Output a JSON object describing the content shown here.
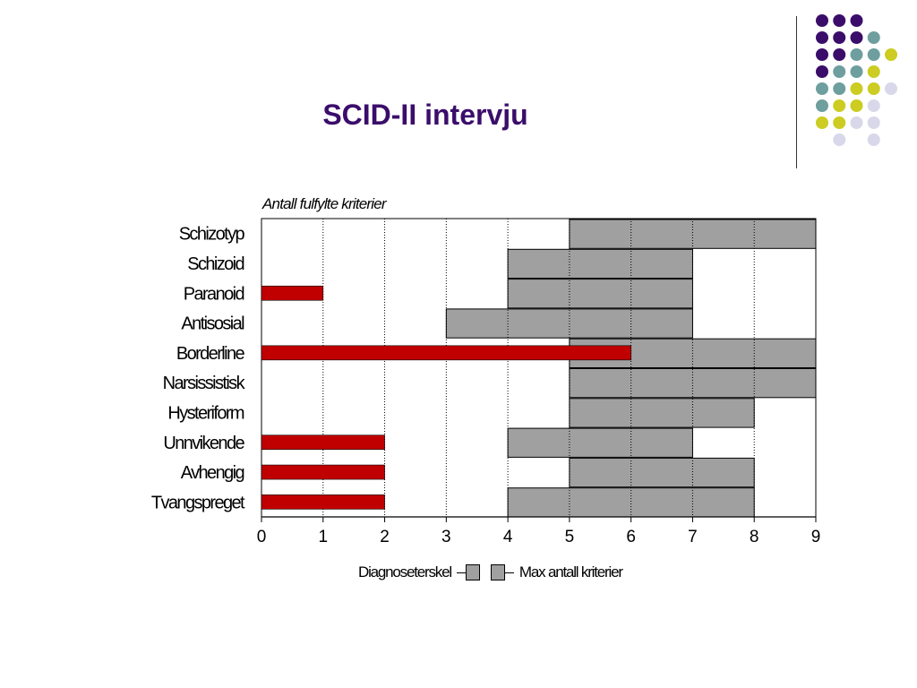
{
  "title": "SCID-II intervju",
  "decor": {
    "colors": {
      "purple": "#3b0d6b",
      "teal": "#6e9e9e",
      "yellow": "#cccc22",
      "lavender": "#d8d8ea"
    }
  },
  "chart_data": {
    "type": "bar",
    "title": "Antall fulfylte kriterier",
    "xlim": [
      0,
      9
    ],
    "xticks": [
      "0",
      "1",
      "2",
      "3",
      "4",
      "5",
      "6",
      "7",
      "8",
      "9"
    ],
    "categories": [
      "Schizotyp",
      "Schizoid",
      "Paranoid",
      "Antisosial",
      "Borderline",
      "Narsissistisk",
      "Hysteriform",
      "Unnvikende",
      "Avhengig",
      "Tvangspreget"
    ],
    "series": [
      {
        "name": "Antall fulfylte kriterier",
        "color": "#c00000",
        "values": [
          0,
          0,
          1,
          0,
          6,
          0,
          0,
          2,
          2,
          2
        ]
      }
    ],
    "ranges": [
      {
        "label": "Schizotyp",
        "start": 5,
        "end": 9
      },
      {
        "label": "Schizoid",
        "start": 4,
        "end": 7
      },
      {
        "label": "Paranoid",
        "start": 4,
        "end": 7
      },
      {
        "label": "Antisosial",
        "start": 3,
        "end": 7
      },
      {
        "label": "Borderline",
        "start": 5,
        "end": 9
      },
      {
        "label": "Narsissistisk",
        "start": 5,
        "end": 9
      },
      {
        "label": "Hysteriform",
        "start": 5,
        "end": 8
      },
      {
        "label": "Unnvikende",
        "start": 4,
        "end": 7
      },
      {
        "label": "Avhengig",
        "start": 5,
        "end": 8
      },
      {
        "label": "Tvangspreget",
        "start": 4,
        "end": 8
      }
    ],
    "range_color": "#a0a0a0",
    "grid": "vertical-dotted",
    "legend": {
      "placement": "bottom",
      "left_label": "Diagnoseterskel",
      "right_label": "Max antall kriterier"
    }
  }
}
